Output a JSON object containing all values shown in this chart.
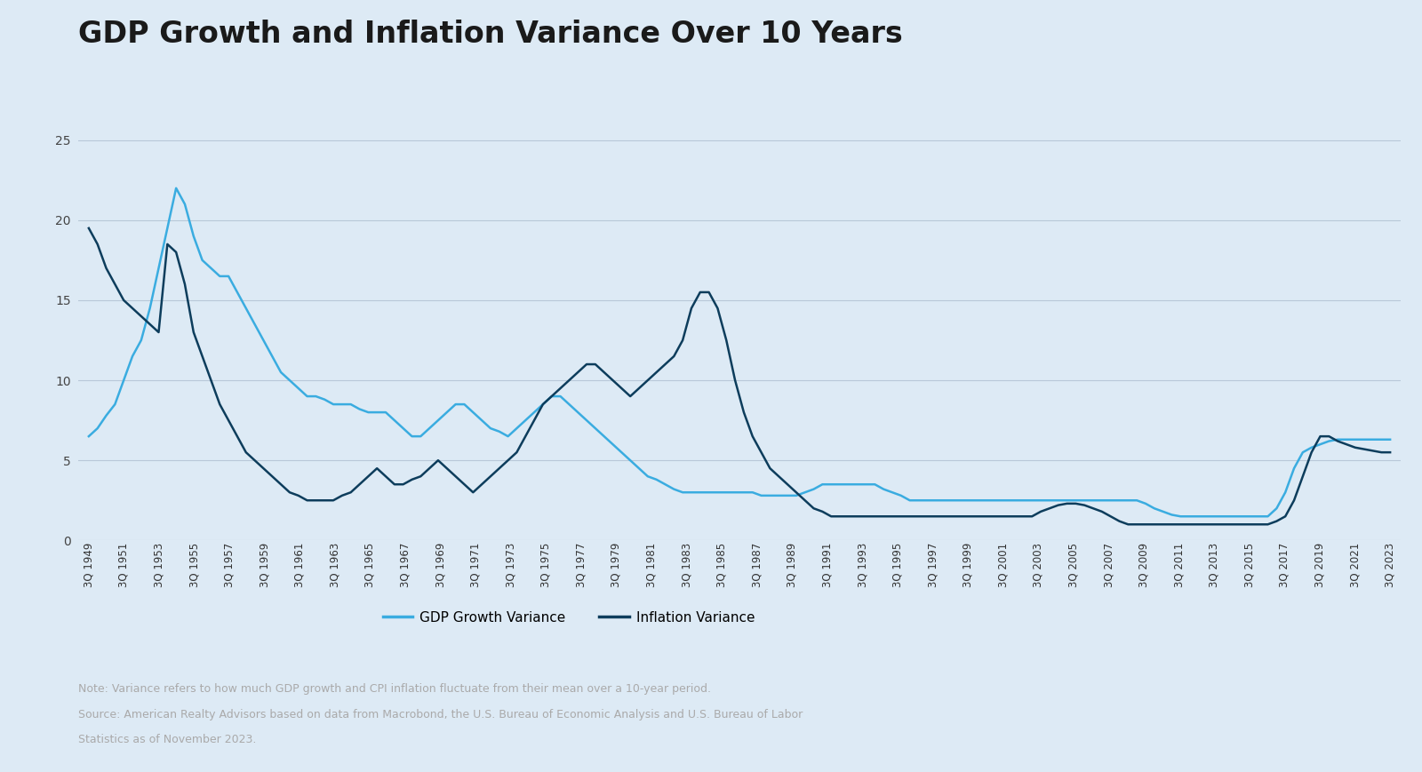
{
  "title": "GDP Growth and Inflation Variance Over 10 Years",
  "background_color": "#ddeaf5",
  "gdp_color": "#3aace0",
  "inflation_color": "#0d3d5c",
  "legend_gdp": "GDP Growth Variance",
  "legend_inflation": "Inflation Variance",
  "note_line1": "Note: Variance refers to how much GDP growth and CPI inflation fluctuate from their mean over a 10-year period.",
  "note_line2": "Source: American Realty Advisors based on data from Macrobond, the U.S. Bureau of Economic Analysis and U.S. Bureau of Labor",
  "note_line3": "Statistics as of November 2023.",
  "ylim": [
    0,
    27
  ],
  "yticks": [
    0,
    5,
    10,
    15,
    20,
    25
  ],
  "gdp_variance": [
    6.5,
    7.0,
    7.8,
    8.5,
    10.0,
    11.5,
    12.5,
    14.5,
    17.0,
    19.5,
    22.0,
    21.0,
    19.0,
    17.5,
    17.0,
    16.5,
    16.5,
    15.5,
    14.5,
    13.5,
    12.5,
    11.5,
    10.5,
    10.0,
    9.5,
    9.0,
    9.0,
    8.8,
    8.5,
    8.5,
    8.5,
    8.2,
    8.0,
    8.0,
    8.0,
    7.5,
    7.0,
    6.5,
    6.5,
    7.0,
    7.5,
    8.0,
    8.5,
    8.5,
    8.0,
    7.5,
    7.0,
    6.8,
    6.5,
    7.0,
    7.5,
    8.0,
    8.5,
    9.0,
    9.0,
    8.5,
    8.0,
    7.5,
    7.0,
    6.5,
    6.0,
    5.5,
    5.0,
    4.5,
    4.0,
    3.8,
    3.5,
    3.2,
    3.0,
    3.0,
    3.0,
    3.0,
    3.0,
    3.0,
    3.0,
    3.0,
    3.0,
    2.8,
    2.8,
    2.8,
    2.8,
    2.8,
    3.0,
    3.2,
    3.5,
    3.5,
    3.5,
    3.5,
    3.5,
    3.5,
    3.5,
    3.2,
    3.0,
    2.8,
    2.5,
    2.5,
    2.5,
    2.5,
    2.5,
    2.5,
    2.5,
    2.5,
    2.5,
    2.5,
    2.5,
    2.5,
    2.5,
    2.5,
    2.5,
    2.5,
    2.5,
    2.5,
    2.5,
    2.5,
    2.5,
    2.5,
    2.5,
    2.5,
    2.5,
    2.5,
    2.5,
    2.3,
    2.0,
    1.8,
    1.6,
    1.5,
    1.5,
    1.5,
    1.5,
    1.5,
    1.5,
    1.5,
    1.5,
    1.5,
    1.5,
    1.5,
    2.0,
    3.0,
    4.5,
    5.5,
    5.8,
    6.0,
    6.2,
    6.3,
    6.3,
    6.3,
    6.3,
    6.3,
    6.3,
    6.3
  ],
  "inflation_variance": [
    19.5,
    18.5,
    17.0,
    16.0,
    15.0,
    14.5,
    14.0,
    13.5,
    13.0,
    18.5,
    18.0,
    16.0,
    13.0,
    11.5,
    10.0,
    8.5,
    7.5,
    6.5,
    5.5,
    5.0,
    4.5,
    4.0,
    3.5,
    3.0,
    2.8,
    2.5,
    2.5,
    2.5,
    2.5,
    2.8,
    3.0,
    3.5,
    4.0,
    4.5,
    4.0,
    3.5,
    3.5,
    3.8,
    4.0,
    4.5,
    5.0,
    4.5,
    4.0,
    3.5,
    3.0,
    3.5,
    4.0,
    4.5,
    5.0,
    5.5,
    6.5,
    7.5,
    8.5,
    9.0,
    9.5,
    10.0,
    10.5,
    11.0,
    11.0,
    10.5,
    10.0,
    9.5,
    9.0,
    9.5,
    10.0,
    10.5,
    11.0,
    11.5,
    12.5,
    14.5,
    15.5,
    15.5,
    14.5,
    12.5,
    10.0,
    8.0,
    6.5,
    5.5,
    4.5,
    4.0,
    3.5,
    3.0,
    2.5,
    2.0,
    1.8,
    1.5,
    1.5,
    1.5,
    1.5,
    1.5,
    1.5,
    1.5,
    1.5,
    1.5,
    1.5,
    1.5,
    1.5,
    1.5,
    1.5,
    1.5,
    1.5,
    1.5,
    1.5,
    1.5,
    1.5,
    1.5,
    1.5,
    1.5,
    1.5,
    1.8,
    2.0,
    2.2,
    2.3,
    2.3,
    2.2,
    2.0,
    1.8,
    1.5,
    1.2,
    1.0,
    1.0,
    1.0,
    1.0,
    1.0,
    1.0,
    1.0,
    1.0,
    1.0,
    1.0,
    1.0,
    1.0,
    1.0,
    1.0,
    1.0,
    1.0,
    1.0,
    1.2,
    1.5,
    2.5,
    4.0,
    5.5,
    6.5,
    6.5,
    6.2,
    6.0,
    5.8,
    5.7,
    5.6,
    5.5,
    5.5
  ],
  "x_tick_years": [
    "3Q 1949",
    "3Q 1951",
    "3Q 1953",
    "3Q 1955",
    "3Q 1957",
    "3Q 1959",
    "3Q 1961",
    "3Q 1963",
    "3Q 1965",
    "3Q 1967",
    "3Q 1969",
    "3Q 1971",
    "3Q 1973",
    "3Q 1975",
    "3Q 1977",
    "3Q 1979",
    "3Q 1981",
    "3Q 1983",
    "3Q 1985",
    "3Q 1987",
    "3Q 1989",
    "3Q 1991",
    "3Q 1993",
    "3Q 1995",
    "3Q 1997",
    "3Q 1999",
    "3Q 2001",
    "3Q 2003",
    "3Q 2005",
    "3Q 2007",
    "3Q 2009",
    "3Q 2011",
    "3Q 2013",
    "3Q 2015",
    "3Q 2017",
    "3Q 2019",
    "3Q 2021",
    "3Q 2023"
  ]
}
